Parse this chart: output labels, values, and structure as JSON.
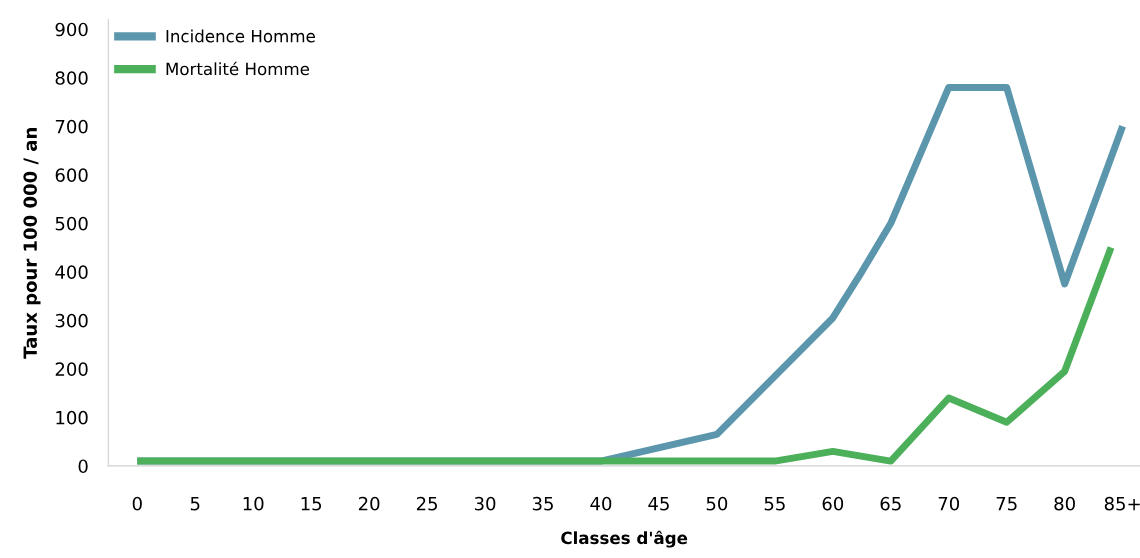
{
  "chart_data": {
    "type": "line",
    "xlabel": "Classes d'âge",
    "ylabel": "Taux pour 100 000 / an",
    "xlim": [
      -2.5,
      86.5
    ],
    "xticks": [
      0,
      5,
      10,
      15,
      20,
      25,
      30,
      35,
      40,
      45,
      50,
      55,
      60,
      65,
      70,
      75,
      80,
      {
        "value": 85,
        "label": "85+"
      }
    ],
    "ylim": [
      0,
      920
    ],
    "yticks": [
      0,
      100,
      200,
      300,
      400,
      500,
      600,
      700,
      800,
      900
    ],
    "grid": false,
    "legend": "top left",
    "marker": "none",
    "line_style": "solid",
    "series": [
      {
        "name": "Incidence Homme",
        "color": "#5b96ad",
        "x": [
          0,
          40,
          50,
          60,
          62.5,
          65,
          70,
          75,
          80,
          85
        ],
        "values": [
          10,
          10,
          65,
          305,
          400,
          500,
          780,
          780,
          375,
          700
        ]
      },
      {
        "name": "Mortalité Homme",
        "color": "#4caf5a",
        "x": [
          0,
          55,
          60,
          65,
          70,
          75,
          80,
          84
        ],
        "values": [
          10,
          10,
          30,
          10,
          140,
          90,
          195,
          450
        ]
      }
    ]
  }
}
